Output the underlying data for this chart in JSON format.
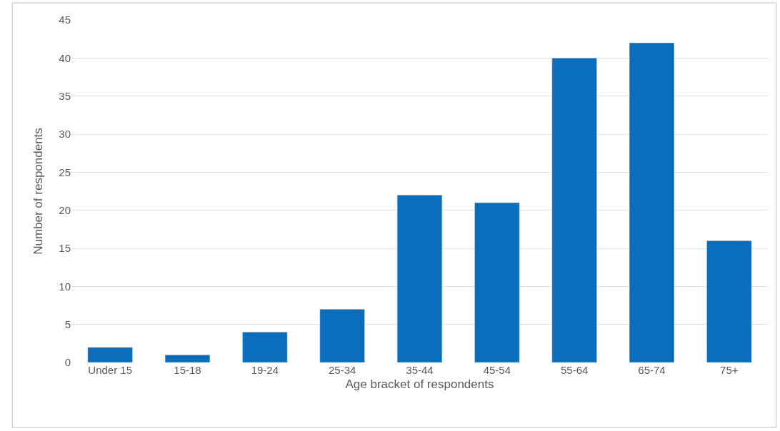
{
  "chart_data": {
    "type": "bar",
    "categories": [
      "Under 15",
      "15-18",
      "19-24",
      "25-34",
      "35-44",
      "45-54",
      "55-64",
      "65-74",
      "75+"
    ],
    "values": [
      2,
      1,
      4,
      7,
      22,
      21,
      40,
      42,
      16
    ],
    "color": "#0a6ebd",
    "xlabel": "Age bracket of respondents",
    "ylabel": "Number of respondents",
    "ylim": [
      0,
      45
    ],
    "yticks": [
      0,
      5,
      10,
      15,
      20,
      25,
      30,
      35,
      40,
      45
    ],
    "grid": "y"
  }
}
